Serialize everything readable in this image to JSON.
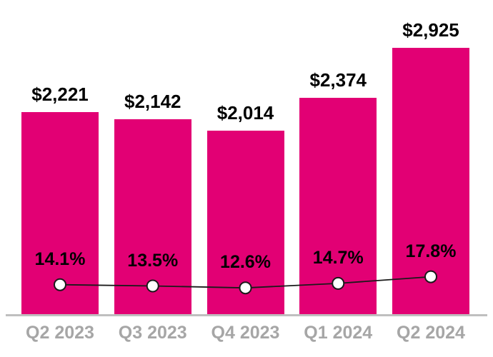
{
  "chart_data": {
    "type": "bar",
    "title": "",
    "xlabel": "",
    "ylabel": "",
    "categories": [
      "Q2 2023",
      "Q3 2023",
      "Q4 2023",
      "Q1 2024",
      "Q2 2024"
    ],
    "series": [
      {
        "name": "dollar-values",
        "type": "bar",
        "values": [
          2221,
          2142,
          2014,
          2374,
          2925
        ],
        "labels": [
          "$2,221",
          "$2,142",
          "$2,014",
          "$2,374",
          "$2,925"
        ]
      },
      {
        "name": "percentages",
        "type": "line",
        "values": [
          14.1,
          13.5,
          12.6,
          14.7,
          17.8
        ],
        "labels": [
          "14.1%",
          "13.5%",
          "12.6%",
          "14.7%",
          "17.8%"
        ]
      }
    ],
    "ylim": [
      0,
      3200
    ],
    "grid": "off",
    "legend": "none",
    "colors": {
      "bar": "#E20074",
      "line": "#1A1A1A",
      "marker_fill": "#FFFFFF",
      "marker_stroke": "#1A1A1A",
      "axis_labels": "#A6A6A6",
      "baseline": "#BFBFBF",
      "data_labels": "#000000"
    }
  }
}
